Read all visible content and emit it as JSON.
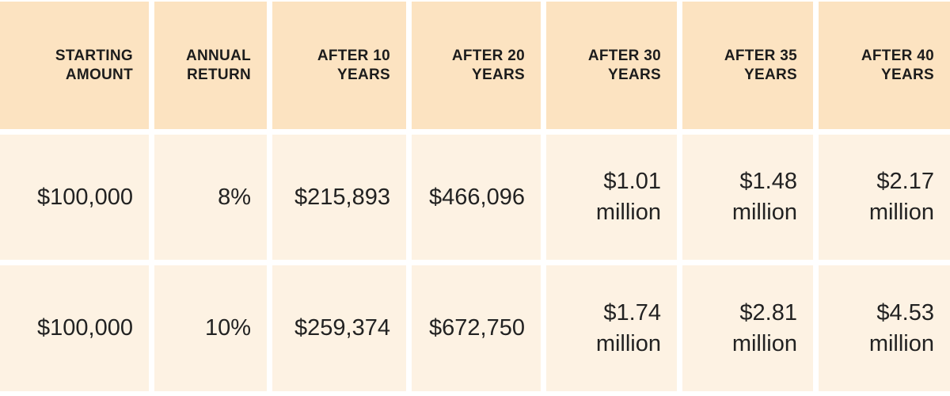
{
  "table": {
    "header": [
      "STARTING\nAMOUNT",
      "ANNUAL\nRETURN",
      "AFTER 10\nYEARS",
      "AFTER 20\nYEARS",
      "AFTER 30\nYEARS",
      "AFTER 35\nYEARS",
      "AFTER 40\nYEARS"
    ],
    "rows": [
      {
        "cells": [
          "$100,000",
          "8%",
          "$215,893",
          "$466,096",
          "$1.01\nmillion",
          "$1.48\nmillion",
          "$2.17\nmillion"
        ]
      },
      {
        "cells": [
          "$100,000",
          "10%",
          "$259,374",
          "$672,750",
          "$1.74\nmillion",
          "$2.81\nmillion",
          "$4.53\nmillion"
        ]
      }
    ]
  },
  "chart_data": {
    "type": "table",
    "columns": [
      "STARTING AMOUNT",
      "ANNUAL RETURN",
      "AFTER 10 YEARS",
      "AFTER 20 YEARS",
      "AFTER 30 YEARS",
      "AFTER 35 YEARS",
      "AFTER 40 YEARS"
    ],
    "rows": [
      [
        "$100,000",
        "8%",
        "$215,893",
        "$466,096",
        "$1.01 million",
        "$1.48 million",
        "$2.17 million"
      ],
      [
        "$100,000",
        "10%",
        "$259,374",
        "$672,750",
        "$1.74 million",
        "$2.81 million",
        "$4.53 million"
      ]
    ]
  },
  "colors": {
    "header_bg": "#fce3c1",
    "row_bg": "#fdf2e3",
    "gap": "#ffffff",
    "header_text": "#1c1c1c",
    "data_text": "#222222"
  }
}
